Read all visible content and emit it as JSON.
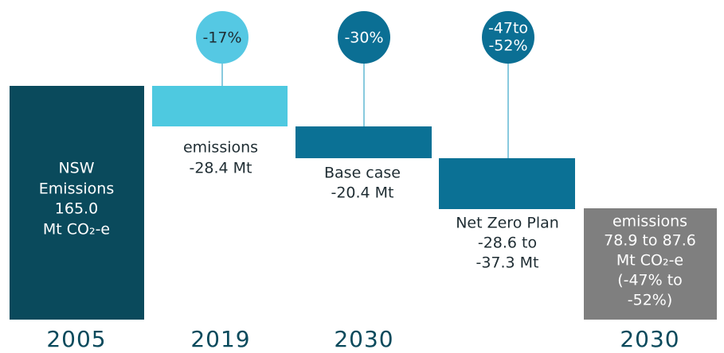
{
  "columns": [
    {
      "year": "2005",
      "lines": [
        "NSW",
        "Emissions",
        "165.0",
        "Mt CO₂-e"
      ]
    },
    {
      "year": "2019",
      "badge": [
        "-17%"
      ],
      "lines": [
        "emissions",
        "-28.4 Mt"
      ]
    },
    {
      "year": "2030",
      "badge": [
        "-30%"
      ],
      "lines": [
        "Base case",
        "-20.4 Mt"
      ]
    },
    {
      "badge": [
        "-47to",
        "-52%"
      ],
      "lines": [
        "Net Zero Plan",
        "-28.6 to",
        "-37.3 Mt"
      ]
    },
    {
      "year": "2030",
      "lines": [
        "emissions",
        "78.9 to 87.6",
        "Mt CO₂-e",
        "(-47% to",
        "-52%)"
      ]
    }
  ]
}
